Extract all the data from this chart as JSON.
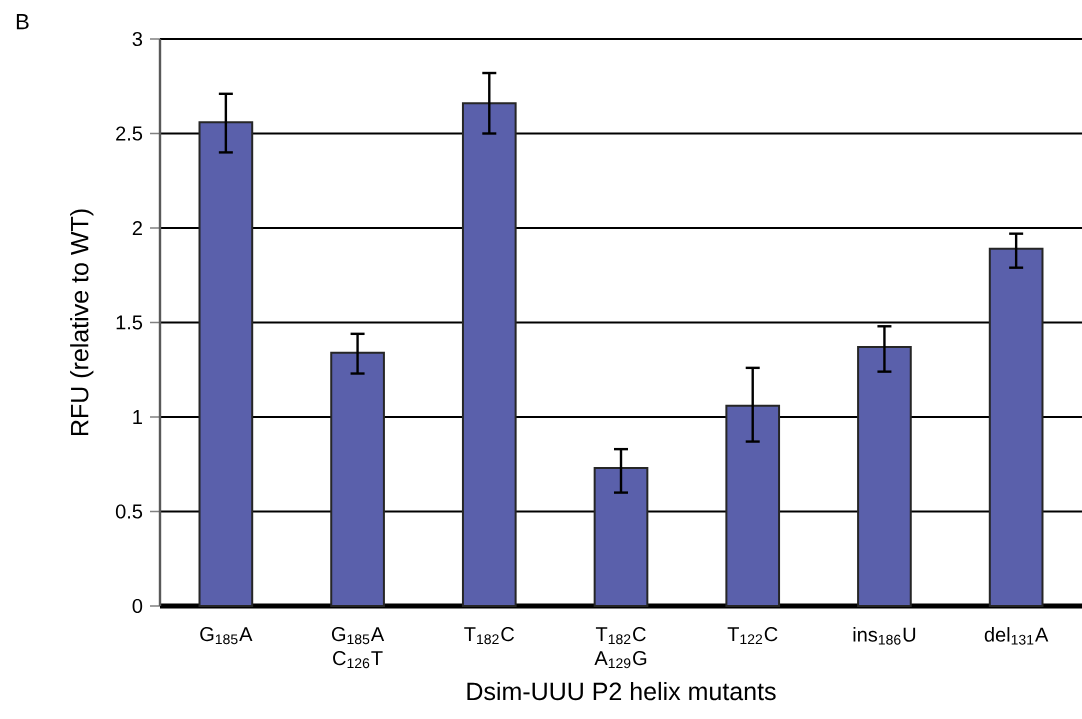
{
  "chart_data": {
    "type": "bar",
    "categories": [
      "G$_{185}$A",
      "G$_{185}$A C$_{126}$T",
      "T$_{182}$C",
      "T$_{182}$C A$_{129}$G",
      "T$_{122}$C",
      "ins$_{186}$U",
      "del$_{131}$A"
    ],
    "values": [
      2.56,
      1.34,
      2.66,
      0.73,
      1.06,
      1.37,
      1.89
    ],
    "errors": [
      [
        2.4,
        2.71
      ],
      [
        1.23,
        1.44
      ],
      [
        2.5,
        2.82
      ],
      [
        0.6,
        0.83
      ],
      [
        0.87,
        1.26
      ],
      [
        1.24,
        1.48
      ],
      [
        1.79,
        1.97
      ]
    ],
    "color": "#5a60ab",
    "xlabel": "Dsim-UUU P2 helix mutants",
    "ylabel": "RFU (relative to WT)",
    "ylim": [
      0,
      3
    ],
    "yticks": [
      0,
      0.5,
      1,
      1.5,
      2,
      2.5,
      3
    ],
    "grid": "y",
    "annotations": [
      "B"
    ]
  }
}
